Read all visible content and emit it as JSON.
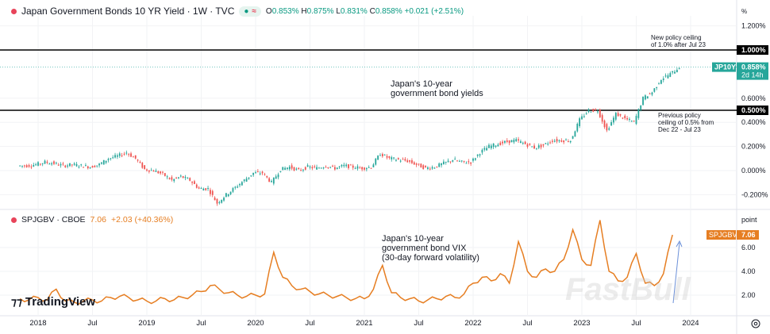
{
  "header": {
    "symbol": "Japan Government Bonds 10 YR Yield · 1W · TVC",
    "approx_icon": "≈",
    "o": "0.853%",
    "h": "0.875%",
    "l": "0.831%",
    "c": "0.858%",
    "change": "+0.021 (+2.51%)"
  },
  "lower_header": {
    "symbol": "SPJGBV · CBOE",
    "value": "7.06",
    "change": "+2.03 (+40.36%)"
  },
  "annotations": {
    "yields": "Japan's 10-year\ngovernment bond yields",
    "vix": "Japan's 10-year\ngovernment bond VIX\n(30-day forward volatility)",
    "new_ceiling": "New policy ceiling\nof 1.0% after Jul 23",
    "prev_ceiling": "Previous policy\nceiling of 0.5% from\nDec 22 - Jul 23"
  },
  "branding": {
    "logo": "TradingView",
    "watermark": "FastBull"
  },
  "colors": {
    "up": "#26a69a",
    "down": "#ef5350",
    "vix": "#e67e22",
    "teal": "#26a69a",
    "arrow": "#6a8fd8"
  },
  "chart_data": [
    {
      "type": "candlestick",
      "unit": "%",
      "ylim": [
        -0.3,
        1.25
      ],
      "yticks": [
        "1.200%",
        "0.600%",
        "0.400%",
        "0.200%",
        "0.000%",
        "-0.200%"
      ],
      "hlines": [
        {
          "value": 1.0,
          "label": "1.000%"
        },
        {
          "value": 0.5,
          "label": "0.500%"
        }
      ],
      "last_label": "JP10Y",
      "last_value": "0.858%",
      "countdown": "2d 14h",
      "start": "2017-11",
      "values": [
        0.04,
        0.05,
        0.07,
        0.06,
        0.04,
        0.05,
        0.04,
        0.03,
        0.05,
        0.1,
        0.12,
        0.15,
        0.1,
        0.01,
        0.0,
        -0.03,
        -0.08,
        -0.05,
        -0.08,
        -0.15,
        -0.15,
        -0.27,
        -0.2,
        -0.14,
        -0.08,
        -0.02,
        -0.02,
        -0.1,
        0.01,
        0.03,
        0.0,
        0.03,
        0.02,
        0.04,
        0.02,
        0.04,
        0.03,
        0.02,
        0.03,
        0.14,
        0.1,
        0.09,
        0.08,
        0.05,
        0.02,
        0.03,
        0.06,
        0.09,
        0.07,
        0.07,
        0.15,
        0.2,
        0.22,
        0.24,
        0.25,
        0.22,
        0.19,
        0.21,
        0.25,
        0.25,
        0.25,
        0.42,
        0.5,
        0.5,
        0.33,
        0.47,
        0.43,
        0.4,
        0.6,
        0.65,
        0.76,
        0.8,
        0.858
      ]
    },
    {
      "type": "line",
      "unit": "point",
      "ylim": [
        0,
        8.7
      ],
      "yticks": [
        "6.00",
        "4.00",
        "2.00"
      ],
      "last_label": "SPJGBV",
      "last_value": "7.06",
      "start": "2017-11",
      "values": [
        1.7,
        1.6,
        1.8,
        1.6,
        2.5,
        1.5,
        1.4,
        1.5,
        1.6,
        1.5,
        1.8,
        1.9,
        1.8,
        1.6,
        1.5,
        1.5,
        1.7,
        1.6,
        1.8,
        2.0,
        2.3,
        2.8,
        2.5,
        2.2,
        2.0,
        1.9,
        2.0,
        2.1,
        5.6,
        3.5,
        2.8,
        2.5,
        2.3,
        2.1,
        2.0,
        1.9,
        1.8,
        1.7,
        1.7,
        2.5,
        4.5,
        2.2,
        1.8,
        1.7,
        1.5,
        1.6,
        1.7,
        1.9,
        1.8,
        2.1,
        3.0,
        3.5,
        3.2,
        3.8,
        3.0,
        6.5,
        4.0,
        3.5,
        4.2,
        4.0,
        5.0,
        7.5,
        5.0,
        4.5,
        8.3,
        4.0,
        3.2,
        3.5,
        5.5,
        3.0,
        2.8,
        3.8,
        7.06
      ]
    }
  ],
  "xaxis": [
    {
      "label": "2018",
      "date": "2018-01"
    },
    {
      "label": "Jul",
      "date": "2018-07"
    },
    {
      "label": "2019",
      "date": "2019-01"
    },
    {
      "label": "Jul",
      "date": "2019-07"
    },
    {
      "label": "2020",
      "date": "2020-01"
    },
    {
      "label": "Jul",
      "date": "2020-07"
    },
    {
      "label": "2021",
      "date": "2021-01"
    },
    {
      "label": "Jul",
      "date": "2021-07"
    },
    {
      "label": "2022",
      "date": "2022-01"
    },
    {
      "label": "Jul",
      "date": "2022-07"
    },
    {
      "label": "2023",
      "date": "2023-01"
    },
    {
      "label": "Jul",
      "date": "2023-07"
    },
    {
      "label": "2024",
      "date": "2024-01"
    }
  ]
}
